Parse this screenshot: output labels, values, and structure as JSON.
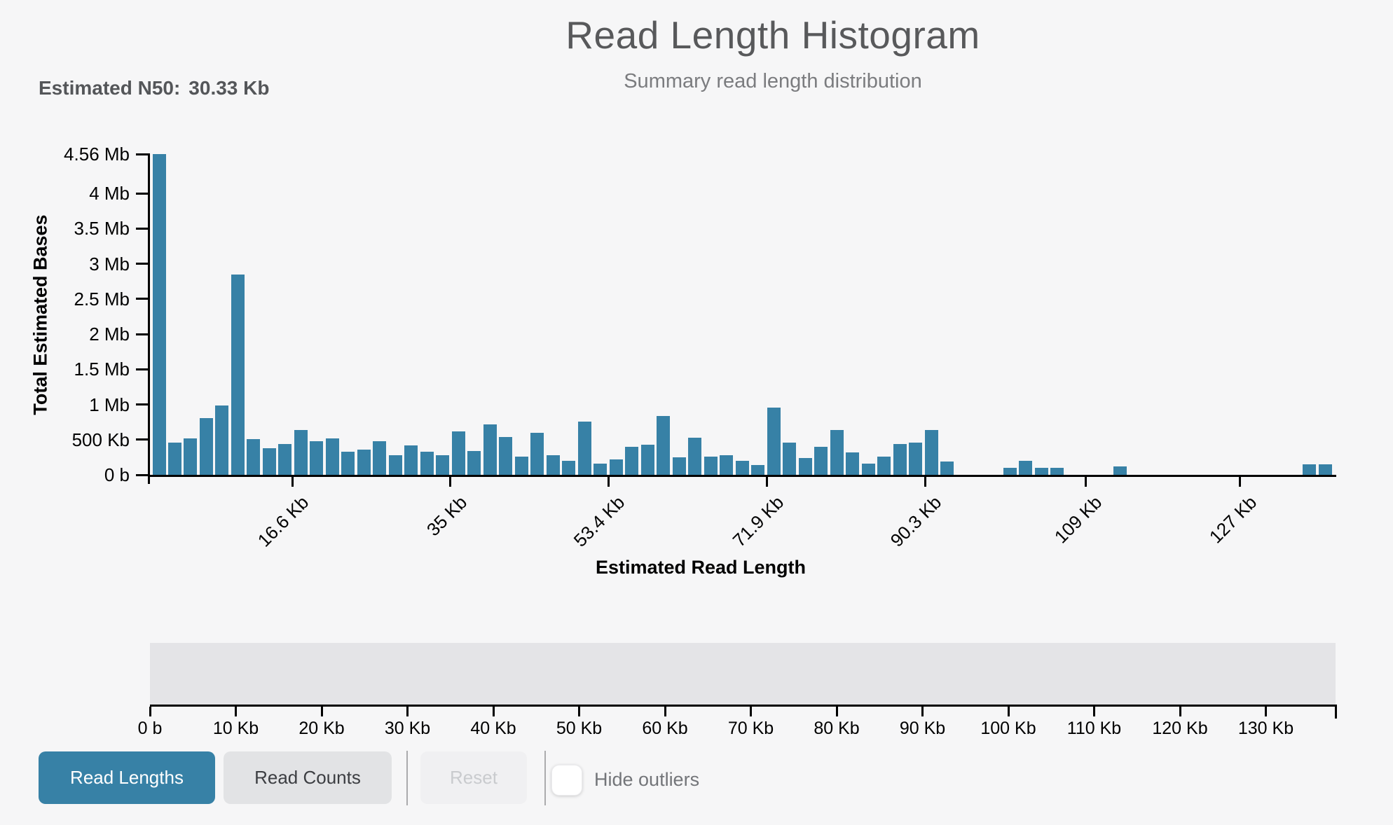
{
  "header": {
    "title": "Read Length Histogram",
    "subtitle": "Summary read length distribution"
  },
  "n50": {
    "label": "Estimated N50:",
    "value": "30.33 Kb"
  },
  "chart_data": {
    "type": "bar",
    "title": "Read Length Histogram",
    "subtitle": "Summary read length distribution",
    "xlabel": "Estimated Read Length",
    "ylabel": "Total Estimated Bases",
    "bar_color": "#3781a6",
    "background_color": "#f6f6f7",
    "ylim_mb": [
      0,
      4.56
    ],
    "xlim_kb": [
      0,
      138.2
    ],
    "bin_width_kb": 1.84,
    "grid": false,
    "y_ticks": [
      {
        "label": "4.56 Mb",
        "mb": 4.56
      },
      {
        "label": "4 Mb",
        "mb": 4.0
      },
      {
        "label": "3.5 Mb",
        "mb": 3.5
      },
      {
        "label": "3 Mb",
        "mb": 3.0
      },
      {
        "label": "2.5 Mb",
        "mb": 2.5
      },
      {
        "label": "2 Mb",
        "mb": 2.0
      },
      {
        "label": "1.5 Mb",
        "mb": 1.5
      },
      {
        "label": "1 Mb",
        "mb": 1.0
      },
      {
        "label": "500 Kb",
        "mb": 0.5
      },
      {
        "label": "0 b",
        "mb": 0.0
      }
    ],
    "x_ticks": [
      {
        "label": "16.6 Kb",
        "kb": 16.6
      },
      {
        "label": "35 Kb",
        "kb": 35.0
      },
      {
        "label": "53.4 Kb",
        "kb": 53.4
      },
      {
        "label": "71.9 Kb",
        "kb": 71.9
      },
      {
        "label": "90.3 Kb",
        "kb": 90.3
      },
      {
        "label": "109 Kb",
        "kb": 109.0
      },
      {
        "label": "127 Kb",
        "kb": 127.0
      }
    ],
    "values_mb": [
      4.56,
      0.46,
      0.52,
      0.81,
      0.99,
      2.85,
      0.51,
      0.38,
      0.44,
      0.64,
      0.48,
      0.52,
      0.33,
      0.36,
      0.48,
      0.28,
      0.42,
      0.33,
      0.28,
      0.62,
      0.34,
      0.72,
      0.54,
      0.26,
      0.6,
      0.28,
      0.2,
      0.76,
      0.16,
      0.22,
      0.4,
      0.43,
      0.84,
      0.25,
      0.53,
      0.26,
      0.28,
      0.2,
      0.14,
      0.96,
      0.46,
      0.24,
      0.4,
      0.64,
      0.32,
      0.16,
      0.26,
      0.44,
      0.46,
      0.64,
      0.19,
      0,
      0,
      0,
      0.1,
      0.2,
      0.1,
      0.1,
      0,
      0,
      0,
      0.12,
      0,
      0,
      0,
      0,
      0,
      0,
      0,
      0,
      0,
      0,
      0,
      0.15,
      0.15
    ]
  },
  "navigator": {
    "xlim_kb": [
      0,
      138.2
    ],
    "ticks": [
      {
        "label": "0 b",
        "kb": 0
      },
      {
        "label": "10 Kb",
        "kb": 10
      },
      {
        "label": "20 Kb",
        "kb": 20
      },
      {
        "label": "30 Kb",
        "kb": 30
      },
      {
        "label": "40 Kb",
        "kb": 40
      },
      {
        "label": "50 Kb",
        "kb": 50
      },
      {
        "label": "60 Kb",
        "kb": 60
      },
      {
        "label": "70 Kb",
        "kb": 70
      },
      {
        "label": "80 Kb",
        "kb": 80
      },
      {
        "label": "90 Kb",
        "kb": 90
      },
      {
        "label": "100 Kb",
        "kb": 100
      },
      {
        "label": "110 Kb",
        "kb": 110
      },
      {
        "label": "120 Kb",
        "kb": 120
      },
      {
        "label": "130 Kb",
        "kb": 130
      }
    ]
  },
  "toolbar": {
    "read_lengths": "Read Lengths",
    "read_counts": "Read Counts",
    "reset": "Reset",
    "hide_outliers": "Hide outliers"
  }
}
